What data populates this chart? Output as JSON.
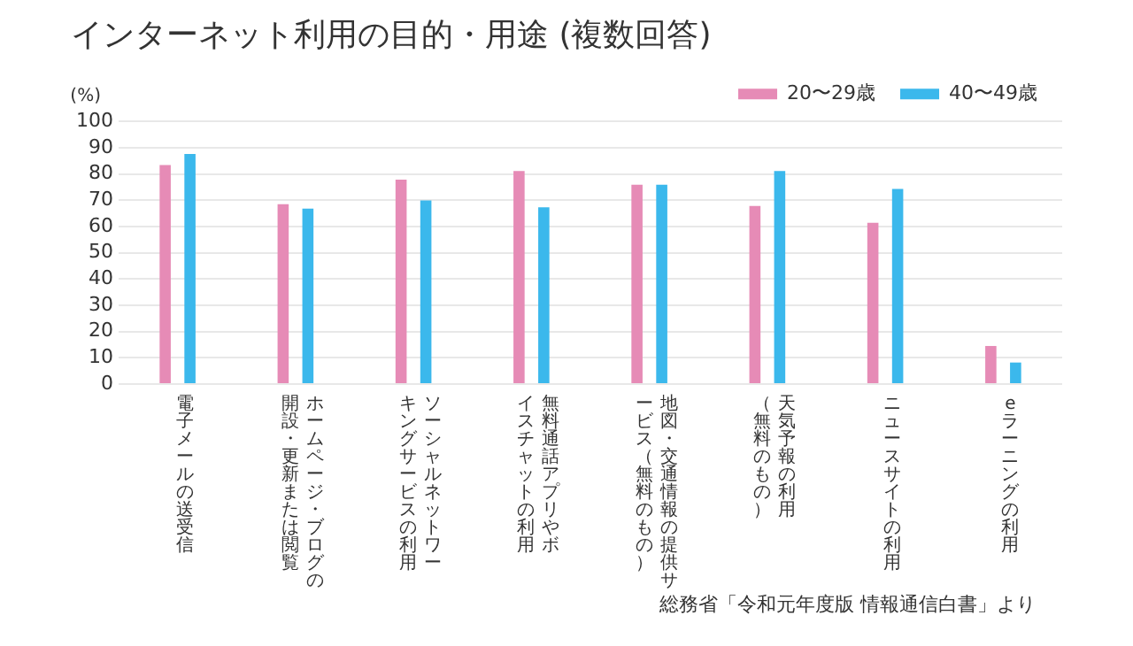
{
  "chart_data": {
    "type": "bar",
    "title": "インターネット利用の目的・用途 (複数回答)",
    "ylabel": "(%)",
    "categories": [
      "電子メールの送受信",
      "ホームページ・ブログの開設・更新または閲覧",
      "ソーシャルネットワーキングサービスの利用",
      "無料通話アプリやボイスチャットの利用",
      "地図・交通情報の提供サービス（無料のもの）",
      "天気予報の利用（無料のもの）",
      "ニュースサイトの利用",
      "eラーニングの利用"
    ],
    "series": [
      {
        "name": "20〜29歳",
        "color": "#e68bb6",
        "values": [
          83.4,
          68.5,
          77.8,
          81.1,
          75.9,
          67.8,
          61.4,
          14.5
        ]
      },
      {
        "name": "40〜49歳",
        "color": "#3bb8ec",
        "values": [
          87.6,
          66.8,
          69.9,
          67.3,
          75.9,
          81.1,
          74.3,
          8.2
        ]
      }
    ],
    "ylim": [
      0,
      100
    ],
    "yticks": [
      0,
      10,
      20,
      30,
      40,
      50,
      60,
      70,
      80,
      90,
      100
    ],
    "grid": "y",
    "legend": "top right",
    "annotations": [
      "総務省「令和元年度版 情報通信白書」より"
    ]
  }
}
